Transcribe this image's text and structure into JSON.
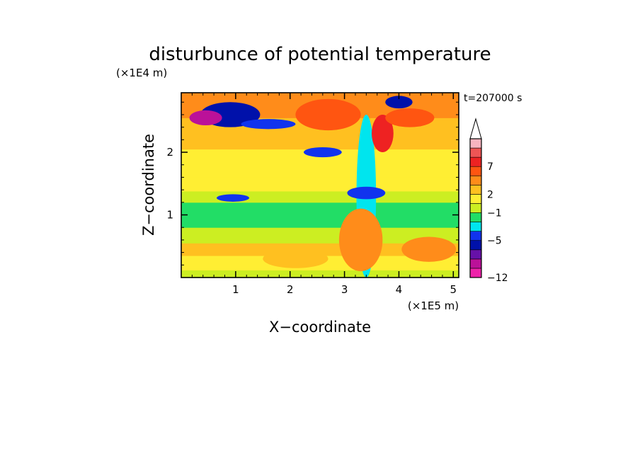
{
  "chart_data": {
    "type": "heatmap",
    "title": "disturbunce of potential temperature",
    "time_label": "t=207000 s",
    "xlabel": "X−coordinate",
    "ylabel": "Z−coordinate",
    "x_unit": "(×1E5 m)",
    "y_unit": "(×1E4 m)",
    "xlim": [
      0,
      5.1
    ],
    "ylim": [
      0,
      2.95
    ],
    "x_ticks": [
      1,
      2,
      3,
      4,
      5
    ],
    "x_tick_labels": [
      "1",
      "2",
      "3",
      "4",
      "5"
    ],
    "y_ticks": [
      1,
      2
    ],
    "y_tick_labels": [
      "1",
      "2"
    ],
    "colorbar": {
      "colors": [
        "#ee22aa",
        "#bb1199",
        "#6611a8",
        "#0011aa",
        "#1133ee",
        "#00e5ee",
        "#22dd66",
        "#ccee22",
        "#ffee33",
        "#ffc020",
        "#ff8c1a",
        "#ff5511",
        "#ee2222",
        "#ee5555",
        "#f8b4c0"
      ],
      "extend_top_color": "#ffffff",
      "bounds": [
        -12,
        -10,
        -8,
        -6,
        -5,
        -4,
        -3,
        -1,
        1,
        2,
        3,
        5,
        7,
        8,
        9,
        11
      ],
      "labeled_ticks": [
        -12,
        -5,
        -1,
        2,
        7
      ],
      "tick_labels": [
        "−12",
        "−5",
        "−1",
        "2",
        "7"
      ]
    },
    "layers": [
      {
        "z_range": [
          0.0,
          0.12
        ],
        "value": 0.0
      },
      {
        "z_range": [
          0.12,
          0.35
        ],
        "value": 1.5
      },
      {
        "z_range": [
          0.35,
          0.55
        ],
        "value": 2.5
      },
      {
        "z_range": [
          0.55,
          0.8
        ],
        "value": 0.0
      },
      {
        "z_range": [
          0.8,
          1.0
        ],
        "value": -2.0
      },
      {
        "z_range": [
          1.0,
          1.2
        ],
        "value": -2.0
      },
      {
        "z_range": [
          1.2,
          1.38
        ],
        "value": 0.0
      },
      {
        "z_range": [
          1.38,
          1.6
        ],
        "value": 1.5
      },
      {
        "z_range": [
          1.6,
          1.85
        ],
        "value": 1.0
      },
      {
        "z_range": [
          1.85,
          2.05
        ],
        "value": 1.5
      },
      {
        "z_range": [
          2.05,
          2.3
        ],
        "value": 2.5
      },
      {
        "z_range": [
          2.3,
          2.55
        ],
        "value": 2.0
      },
      {
        "z_range": [
          2.55,
          2.95
        ],
        "value": 4.0
      }
    ],
    "features": [
      {
        "x": 3.4,
        "z": 1.3,
        "width": 0.18,
        "height": 1.3,
        "value": -3.5
      },
      {
        "x": 0.9,
        "z": 2.6,
        "width": 0.55,
        "height": 0.2,
        "value": -5.5
      },
      {
        "x": 0.45,
        "z": 2.55,
        "width": 0.3,
        "height": 0.12,
        "value": -9
      },
      {
        "x": 1.6,
        "z": 2.45,
        "width": 0.5,
        "height": 0.08,
        "value": -4.5
      },
      {
        "x": 2.6,
        "z": 2.0,
        "width": 0.35,
        "height": 0.08,
        "value": -4.5
      },
      {
        "x": 3.4,
        "z": 1.35,
        "width": 0.35,
        "height": 0.1,
        "value": -4.5
      },
      {
        "x": 0.95,
        "z": 1.27,
        "width": 0.3,
        "height": 0.06,
        "value": -4.5
      },
      {
        "x": 2.7,
        "z": 2.6,
        "width": 0.6,
        "height": 0.25,
        "value": 6.0
      },
      {
        "x": 3.7,
        "z": 2.3,
        "width": 0.2,
        "height": 0.3,
        "value": 7.5
      },
      {
        "x": 4.2,
        "z": 2.55,
        "width": 0.45,
        "height": 0.15,
        "value": 6.0
      },
      {
        "x": 4.0,
        "z": 2.8,
        "width": 0.25,
        "height": 0.1,
        "value": -5.5
      },
      {
        "x": 3.3,
        "z": 0.6,
        "width": 0.4,
        "height": 0.5,
        "value": 3.5
      },
      {
        "x": 4.55,
        "z": 0.45,
        "width": 0.5,
        "height": 0.2,
        "value": 3.5
      },
      {
        "x": 2.1,
        "z": 0.3,
        "width": 0.6,
        "height": 0.15,
        "value": 2.5
      }
    ]
  }
}
